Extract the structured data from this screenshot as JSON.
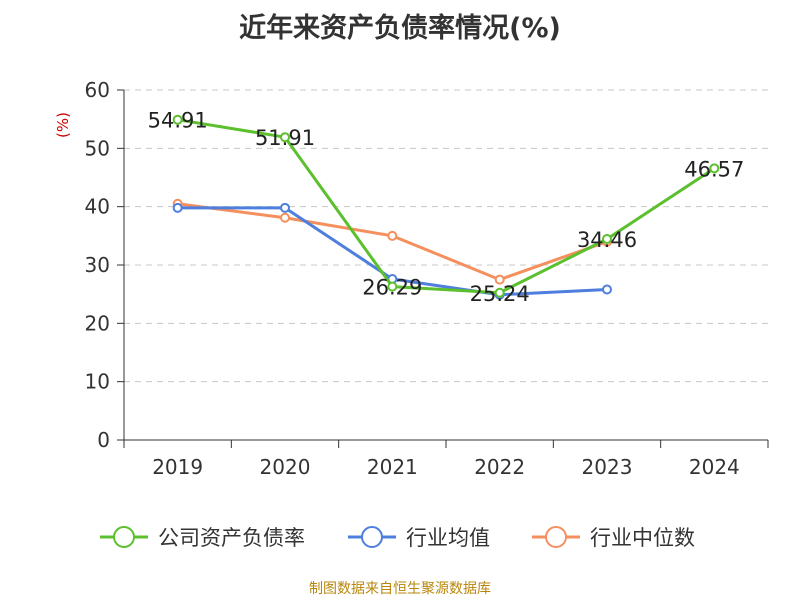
{
  "chart_data": {
    "type": "line",
    "title": "近年来资产负债率情况(%)",
    "ylabel": "(%)",
    "xlabel": "",
    "categories": [
      "2019",
      "2020",
      "2021",
      "2022",
      "2023",
      "2024"
    ],
    "ylim": [
      0,
      60
    ],
    "yticks": [
      0,
      10,
      20,
      30,
      40,
      50,
      60
    ],
    "grid": true,
    "legend_position": "bottom",
    "series": [
      {
        "name": "公司资产负债率",
        "color": "#5cc02e",
        "values": [
          54.91,
          51.91,
          26.29,
          25.24,
          34.46,
          46.57
        ],
        "labels": [
          "54.91",
          "51.91",
          "26.29",
          "25.24",
          "34.46",
          "46.57"
        ]
      },
      {
        "name": "行业均值",
        "color": "#4f7fde",
        "values": [
          39.8,
          39.8,
          27.6,
          24.9,
          25.8,
          null
        ]
      },
      {
        "name": "行业中位数",
        "color": "#f5905e",
        "values": [
          40.5,
          38.1,
          35.0,
          27.5,
          34.0,
          null
        ]
      }
    ]
  },
  "source_note": "制图数据来自恒生聚源数据库"
}
